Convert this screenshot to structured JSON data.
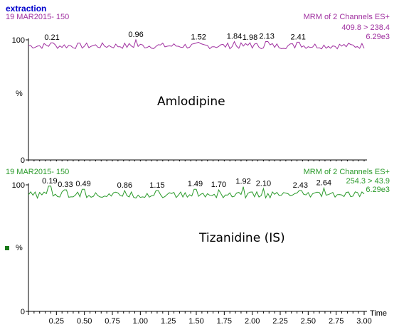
{
  "header": {
    "title": "extraction"
  },
  "chart_data": [
    {
      "type": "line",
      "date_label": "19 MAR2015- 150",
      "scan_label": "MRM of 2 Channels ES+",
      "transition": "409.8 > 238.4",
      "intensity": "6.29e3",
      "compound": "Amlodipine",
      "color": "#a030a0",
      "xlim": [
        0.0,
        3.0
      ],
      "ylim": [
        0,
        100
      ],
      "y_ticks": [
        "100",
        "0"
      ],
      "ylabel": "%",
      "baseline_level": 95,
      "noise_amplitude": 2.5,
      "peaks": [
        {
          "x": 0.21,
          "label": "0.21",
          "height": 97.5
        },
        {
          "x": 0.96,
          "label": "0.96",
          "height": 100
        },
        {
          "x": 1.52,
          "label": "1.52",
          "height": 98
        },
        {
          "x": 1.84,
          "label": "1.84",
          "height": 98.5
        },
        {
          "x": 1.98,
          "label": "1.98",
          "height": 97.5
        },
        {
          "x": 2.13,
          "label": "2.13",
          "height": 98.5
        },
        {
          "x": 2.41,
          "label": "2.41",
          "height": 98
        }
      ]
    },
    {
      "type": "line",
      "date_label": "19 MAR2015- 150",
      "scan_label": "MRM of 2 Channels ES+",
      "transition": "254.3 > 43.9",
      "intensity": "6.29e3",
      "compound": "Tizanidine (IS)",
      "color": "#2a9a2a",
      "xlim": [
        0.0,
        3.0
      ],
      "ylim": [
        0,
        100
      ],
      "y_ticks": [
        "100",
        "0"
      ],
      "ylabel": "%",
      "xlabel": "Time",
      "x_ticks": [
        "0.25",
        "0.50",
        "0.75",
        "1.00",
        "1.25",
        "1.50",
        "1.75",
        "2.00",
        "2.25",
        "2.50",
        "2.75",
        "3.00"
      ],
      "baseline_level": 92,
      "noise_amplitude": 2.5,
      "peaks": [
        {
          "x": 0.19,
          "label": "0.19",
          "height": 99
        },
        {
          "x": 0.33,
          "label": "0.33",
          "height": 96
        },
        {
          "x": 0.49,
          "label": "0.49",
          "height": 96.5
        },
        {
          "x": 0.86,
          "label": "0.86",
          "height": 95.5
        },
        {
          "x": 1.15,
          "label": "1.15",
          "height": 95.5
        },
        {
          "x": 1.49,
          "label": "1.49",
          "height": 96.5
        },
        {
          "x": 1.7,
          "label": "1.70",
          "height": 96
        },
        {
          "x": 1.92,
          "label": "1.92",
          "height": 98.5
        },
        {
          "x": 2.1,
          "label": "2.10",
          "height": 97
        },
        {
          "x": 2.43,
          "label": "2.43",
          "height": 95.5
        },
        {
          "x": 2.64,
          "label": "2.64",
          "height": 97.5
        }
      ]
    }
  ],
  "colors": {
    "title": "#0000cc",
    "marker": "#1a7a1a"
  }
}
